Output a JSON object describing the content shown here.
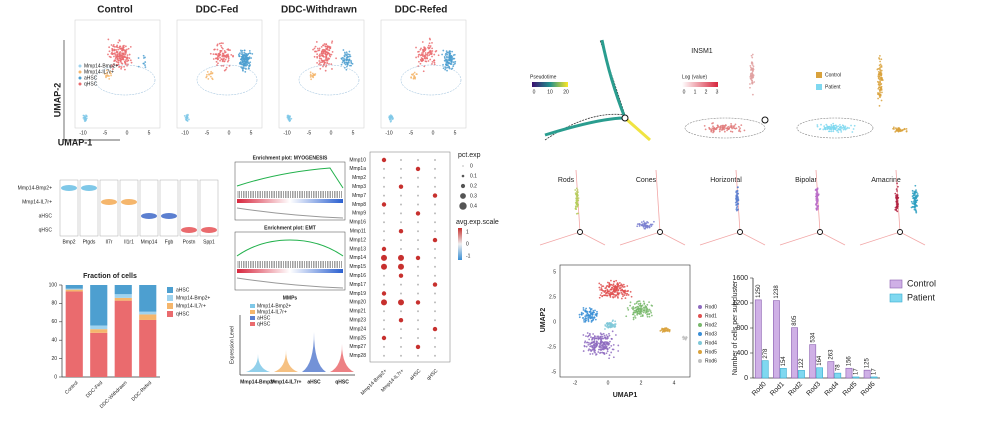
{
  "panels": {
    "umap": {
      "titles": [
        "Control",
        "DDC-Fed",
        "DDC-Withdrawn",
        "DDC-Refed"
      ],
      "y_label": "UMAP-2",
      "x_label": "UMAP-1",
      "legend": [
        "Mmp14-Bmp2+",
        "Mmp14-IL7r+",
        "aHSC",
        "qHSC"
      ],
      "xticks": [
        "-10",
        "-5",
        "0",
        "5"
      ]
    },
    "violin": {
      "rows": [
        "Mmp14-Bmp2+",
        "Mmp14-IL7r+",
        "aHSC",
        "qHSC"
      ],
      "genes": [
        "Bmp2",
        "Ptgds",
        "Il7r",
        "Il1r1",
        "Mmp14",
        "Fgb",
        "Postn",
        "Spp1"
      ]
    },
    "gsea": {
      "titles": [
        "Enrichment plot: MYOGENESIS",
        "Enrichment plot: EMT"
      ]
    },
    "mmps": {
      "title": "MMPs",
      "legend": [
        "Mmp14-Bmp2+",
        "Mmp14-IL7r+",
        "aHSC",
        "qHSC"
      ],
      "y_label": "Expression Level"
    },
    "dotplot": {
      "genes": [
        "Mmp10",
        "Mmp1a",
        "Mmp2",
        "Mmp3",
        "Mmp7",
        "Mmp8",
        "Mmp9",
        "Mmp16",
        "Mmp11",
        "Mmp12",
        "Mmp13",
        "Mmp14",
        "Mmp15",
        "Mmp16",
        "Mmp17",
        "Mmp19",
        "Mmp20",
        "Mmp21",
        "Mmp23",
        "Mmp24",
        "Mmp25",
        "Mmp27",
        "Mmp28"
      ],
      "groups": [
        "Mmp14-Bmp2+",
        "Mmp14-IL7r+",
        "aHSC",
        "qHSC"
      ],
      "size_title": "pct.exp",
      "size_ticks": [
        "0",
        "0.1",
        "0.2",
        "0.3",
        "0.4"
      ],
      "color_title": "avg.exp.scale",
      "color_ticks": [
        "1",
        "0",
        "-1"
      ]
    },
    "trajectory": {
      "pseudotime_title": "Pseudotime",
      "pseudotime_ticks": [
        "0",
        "10",
        "20"
      ],
      "gene": "INSM1",
      "gene_scale_title": "Log (value)",
      "gene_ticks": [
        "0",
        "1",
        "2",
        "3"
      ],
      "legend": [
        "Control",
        "Patient"
      ],
      "cell_types": [
        "Rods",
        "Cones",
        "Horizontal",
        "Bipolar",
        "Amacrine"
      ]
    },
    "rod_umap": {
      "x_label": "UMAP1",
      "y_label": "UMAP2",
      "xticks": [
        "-2",
        "0",
        "2",
        "4"
      ],
      "yticks": [
        "5",
        "2.5",
        "0",
        "-2.5",
        "-5"
      ],
      "legend": [
        "Rod0",
        "Rod1",
        "Rod2",
        "Rod3",
        "Rod4",
        "Rod5",
        "Rod6"
      ]
    }
  },
  "chart_data": [
    {
      "type": "stacked_bar",
      "title": "Fraction of cells",
      "categories": [
        "Control",
        "DDC-Fed",
        "DDC-Withdrawn",
        "DDC-Refed"
      ],
      "series": [
        {
          "name": "qHSC",
          "color": "#ea6b6e",
          "values": [
            93,
            48,
            83,
            62
          ]
        },
        {
          "name": "Mmp14-IL7r+",
          "color": "#f5b66c",
          "values": [
            2,
            4,
            3,
            6
          ]
        },
        {
          "name": "Mmp14-Bmp2+",
          "color": "#9fd3ef",
          "values": [
            1,
            4,
            4,
            3
          ]
        },
        {
          "name": "aHSC",
          "color": "#4d9fd0",
          "values": [
            4,
            44,
            10,
            29
          ]
        }
      ],
      "ylim": [
        0,
        100
      ],
      "yticks": [
        0,
        20,
        40,
        60,
        80,
        100
      ]
    },
    {
      "type": "bar",
      "y_label": "Number of cells per subcluster",
      "categories": [
        "Rod0",
        "Rod1",
        "Rod2",
        "Rod3",
        "Rod4",
        "Rod5",
        "Rod6"
      ],
      "series": [
        {
          "name": "Control",
          "color": "#cfb0e6",
          "values": [
            1250,
            1238,
            805,
            534,
            263,
            156,
            125
          ]
        },
        {
          "name": "Patient",
          "color": "#7fd8f0",
          "values": [
            278,
            154,
            122,
            164,
            78,
            17,
            17
          ]
        }
      ],
      "ylim": [
        0,
        1600
      ],
      "yticks": [
        0,
        400,
        800,
        1200,
        1600
      ]
    }
  ]
}
